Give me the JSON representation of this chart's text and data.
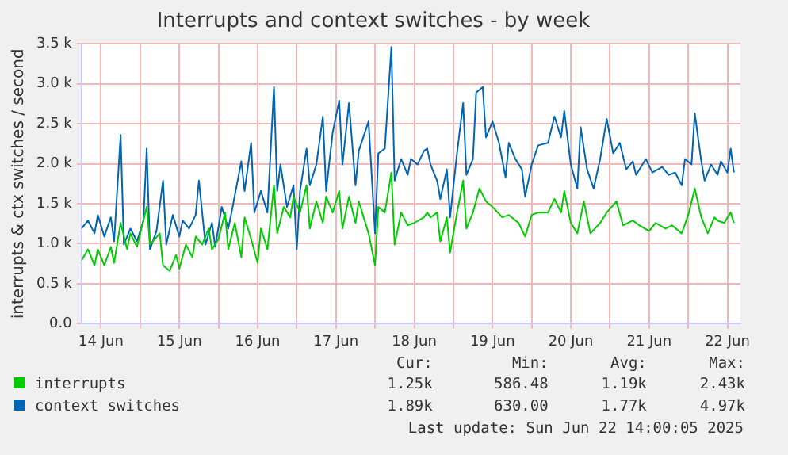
{
  "chart_data": {
    "type": "line",
    "title": "Interrupts and context switches - by week",
    "ylabel": "interrupts & ctx switches / second",
    "xlim": [
      "2025-06-14T06:00",
      "2025-06-22T16:00"
    ],
    "xticks": [
      {
        "value": "2025-06-14T12:00",
        "label": "14 Jun"
      },
      {
        "value": "2025-06-15T00:00",
        "label": null
      },
      {
        "value": "2025-06-15T12:00",
        "label": "15 Jun"
      },
      {
        "value": "2025-06-16T00:00",
        "label": null
      },
      {
        "value": "2025-06-16T12:00",
        "label": "16 Jun"
      },
      {
        "value": "2025-06-17T00:00",
        "label": null
      },
      {
        "value": "2025-06-17T12:00",
        "label": "17 Jun"
      },
      {
        "value": "2025-06-18T00:00",
        "label": null
      },
      {
        "value": "2025-06-18T12:00",
        "label": "18 Jun"
      },
      {
        "value": "2025-06-19T00:00",
        "label": null
      },
      {
        "value": "2025-06-19T12:00",
        "label": "19 Jun"
      },
      {
        "value": "2025-06-20T00:00",
        "label": null
      },
      {
        "value": "2025-06-20T12:00",
        "label": "20 Jun"
      },
      {
        "value": "2025-06-21T00:00",
        "label": null
      },
      {
        "value": "2025-06-21T12:00",
        "label": "21 Jun"
      },
      {
        "value": "2025-06-22T00:00",
        "label": null
      },
      {
        "value": "2025-06-22T12:00",
        "label": "22 Jun"
      }
    ],
    "ylim": [
      0,
      3.5
    ],
    "yticks": [
      {
        "value": 0,
        "label": "0.0"
      },
      {
        "value": 0.5,
        "label": "0.5 k"
      },
      {
        "value": 1,
        "label": "1.0 k"
      },
      {
        "value": 1.5,
        "label": "1.5 k"
      },
      {
        "value": 2,
        "label": "2.0 k"
      },
      {
        "value": 2.5,
        "label": "2.5 k"
      },
      {
        "value": 3,
        "label": "3.0 k"
      },
      {
        "value": 3.5,
        "label": "3.5 k"
      }
    ],
    "grid": true,
    "legend": "bottom left",
    "marker": "none",
    "series": [
      {
        "name": "interrupts",
        "color": "#00cc00",
        "x": [
          "2025-06-14T06:00",
          "2025-06-14T08:00",
          "2025-06-14T10:00",
          "2025-06-14T11:00",
          "2025-06-14T13:00",
          "2025-06-14T15:00",
          "2025-06-14T16:00",
          "2025-06-14T18:00",
          "2025-06-14T20:00",
          "2025-06-14T21:00",
          "2025-06-14T23:00",
          "2025-06-15T02:00",
          "2025-06-15T03:00",
          "2025-06-15T06:00",
          "2025-06-15T07:00",
          "2025-06-15T09:00",
          "2025-06-15T11:00",
          "2025-06-15T12:00",
          "2025-06-15T14:00",
          "2025-06-15T16:00",
          "2025-06-15T17:00",
          "2025-06-15T19:00",
          "2025-06-15T21:00",
          "2025-06-15T22:00",
          "2025-06-16T00:00",
          "2025-06-16T02:00",
          "2025-06-16T03:00",
          "2025-06-16T05:00",
          "2025-06-16T07:00",
          "2025-06-16T08:00",
          "2025-06-16T10:00",
          "2025-06-16T12:00",
          "2025-06-16T13:00",
          "2025-06-16T15:00",
          "2025-06-16T17:00",
          "2025-06-16T18:00",
          "2025-06-16T20:00",
          "2025-06-16T22:00",
          "2025-06-16T23:00",
          "2025-06-17T01:00",
          "2025-06-17T03:00",
          "2025-06-17T04:00",
          "2025-06-17T06:00",
          "2025-06-17T08:00",
          "2025-06-17T09:00",
          "2025-06-17T11:00",
          "2025-06-17T13:00",
          "2025-06-17T14:00",
          "2025-06-17T16:00",
          "2025-06-17T18:00",
          "2025-06-17T19:00",
          "2025-06-17T22:00",
          "2025-06-18T00:00",
          "2025-06-18T01:00",
          "2025-06-18T03:00",
          "2025-06-18T05:00",
          "2025-06-18T06:00",
          "2025-06-18T08:00",
          "2025-06-18T10:00",
          "2025-06-18T12:00",
          "2025-06-18T15:00",
          "2025-06-18T16:00",
          "2025-06-18T17:00",
          "2025-06-18T19:00",
          "2025-06-18T20:00",
          "2025-06-18T22:00",
          "2025-06-18T23:00",
          "2025-06-19T01:00",
          "2025-06-19T03:00",
          "2025-06-19T04:00",
          "2025-06-19T06:00",
          "2025-06-19T08:00",
          "2025-06-19T10:00",
          "2025-06-19T12:00",
          "2025-06-19T15:00",
          "2025-06-19T17:00",
          "2025-06-19T20:00",
          "2025-06-19T22:00",
          "2025-06-20T00:00",
          "2025-06-20T02:00",
          "2025-06-20T05:00",
          "2025-06-20T07:00",
          "2025-06-20T09:00",
          "2025-06-20T10:00",
          "2025-06-20T12:00",
          "2025-06-20T14:00",
          "2025-06-20T16:00",
          "2025-06-20T18:00",
          "2025-06-20T21:00",
          "2025-06-20T23:00",
          "2025-06-21T02:00",
          "2025-06-21T04:00",
          "2025-06-21T07:00",
          "2025-06-21T09:00",
          "2025-06-21T12:00",
          "2025-06-21T14:00",
          "2025-06-21T17:00",
          "2025-06-21T19:00",
          "2025-06-21T22:00",
          "2025-06-22T00:00",
          "2025-06-22T02:00",
          "2025-06-22T04:00",
          "2025-06-22T06:00",
          "2025-06-22T08:00",
          "2025-06-22T09:00",
          "2025-06-22T11:00",
          "2025-06-22T13:00",
          "2025-06-22T14:00"
        ],
        "values": [
          0.79,
          0.93,
          0.73,
          0.93,
          0.73,
          0.96,
          0.76,
          1.26,
          0.93,
          1.13,
          0.96,
          1.46,
          0.99,
          1.13,
          0.73,
          0.66,
          0.86,
          0.69,
          0.99,
          0.83,
          1.09,
          0.99,
          1.19,
          0.93,
          1.06,
          1.39,
          0.93,
          1.26,
          0.83,
          1.33,
          1.06,
          0.76,
          1.19,
          0.93,
          1.73,
          1.13,
          1.46,
          1.33,
          1.59,
          1.39,
          1.73,
          1.19,
          1.53,
          1.26,
          1.59,
          1.39,
          1.66,
          1.19,
          1.59,
          1.26,
          1.53,
          1.13,
          0.73,
          1.46,
          1.39,
          1.89,
          0.99,
          1.39,
          1.23,
          1.26,
          1.33,
          1.39,
          1.33,
          1.39,
          1.03,
          1.33,
          0.89,
          1.36,
          1.79,
          1.19,
          1.39,
          1.69,
          1.53,
          1.46,
          1.33,
          1.36,
          1.26,
          1.09,
          1.36,
          1.39,
          1.39,
          1.56,
          1.39,
          1.66,
          1.26,
          1.13,
          1.53,
          1.13,
          1.26,
          1.39,
          1.53,
          1.23,
          1.29,
          1.23,
          1.16,
          1.26,
          1.19,
          1.23,
          1.13,
          1.36,
          1.69,
          1.33,
          1.13,
          1.33,
          1.29,
          1.26,
          1.39,
          1.26
        ]
      },
      {
        "name": "context switches",
        "color": "#0066b3",
        "x": [
          "2025-06-14T06:00",
          "2025-06-14T08:00",
          "2025-06-14T10:00",
          "2025-06-14T11:00",
          "2025-06-14T13:00",
          "2025-06-14T15:00",
          "2025-06-14T16:00",
          "2025-06-14T18:00",
          "2025-06-14T19:00",
          "2025-06-14T21:00",
          "2025-06-14T23:00",
          "2025-06-15T01:00",
          "2025-06-15T02:00",
          "2025-06-15T03:00",
          "2025-06-15T05:00",
          "2025-06-15T07:00",
          "2025-06-15T08:00",
          "2025-06-15T10:00",
          "2025-06-15T12:00",
          "2025-06-15T13:00",
          "2025-06-15T15:00",
          "2025-06-15T17:00",
          "2025-06-15T18:00",
          "2025-06-15T20:00",
          "2025-06-15T22:00",
          "2025-06-15T23:00",
          "2025-06-16T01:00",
          "2025-06-16T03:00",
          "2025-06-16T04:00",
          "2025-06-16T07:00",
          "2025-06-16T08:00",
          "2025-06-16T10:00",
          "2025-06-16T11:00",
          "2025-06-16T13:00",
          "2025-06-16T15:00",
          "2025-06-16T17:00",
          "2025-06-16T18:00",
          "2025-06-16T19:00",
          "2025-06-16T21:00",
          "2025-06-16T23:00",
          "2025-06-17T00:00",
          "2025-06-17T01:00",
          "2025-06-17T03:00",
          "2025-06-17T04:00",
          "2025-06-17T06:00",
          "2025-06-17T08:00",
          "2025-06-17T09:00",
          "2025-06-17T11:00",
          "2025-06-17T13:00",
          "2025-06-17T14:00",
          "2025-06-17T16:00",
          "2025-06-17T18:00",
          "2025-06-17T19:00",
          "2025-06-17T22:00",
          "2025-06-18T00:00",
          "2025-06-18T01:00",
          "2025-06-18T03:00",
          "2025-06-18T05:00",
          "2025-06-18T06:00",
          "2025-06-18T08:00",
          "2025-06-18T10:00",
          "2025-06-18T11:00",
          "2025-06-18T13:00",
          "2025-06-18T15:00",
          "2025-06-18T16:00",
          "2025-06-18T17:00",
          "2025-06-18T19:00",
          "2025-06-18T20:00",
          "2025-06-18T22:00",
          "2025-06-18T23:00",
          "2025-06-19T01:00",
          "2025-06-19T03:00",
          "2025-06-19T04:00",
          "2025-06-19T06:00",
          "2025-06-19T07:00",
          "2025-06-19T09:00",
          "2025-06-19T10:00",
          "2025-06-19T12:00",
          "2025-06-19T14:00",
          "2025-06-19T16:00",
          "2025-06-19T17:00",
          "2025-06-19T19:00",
          "2025-06-19T21:00",
          "2025-06-19T22:00",
          "2025-06-20T00:00",
          "2025-06-20T02:00",
          "2025-06-20T05:00",
          "2025-06-20T07:00",
          "2025-06-20T09:00",
          "2025-06-20T10:00",
          "2025-06-20T12:00",
          "2025-06-20T14:00",
          "2025-06-20T15:00",
          "2025-06-20T17:00",
          "2025-06-20T19:00",
          "2025-06-20T21:00",
          "2025-06-20T23:00",
          "2025-06-21T01:00",
          "2025-06-21T03:00",
          "2025-06-21T05:00",
          "2025-06-21T07:00",
          "2025-06-21T08:00",
          "2025-06-21T11:00",
          "2025-06-21T13:00",
          "2025-06-21T16:00",
          "2025-06-21T18:00",
          "2025-06-21T20:00",
          "2025-06-21T22:00",
          "2025-06-21T23:00",
          "2025-06-22T01:00",
          "2025-06-22T02:00",
          "2025-06-22T04:00",
          "2025-06-22T05:00",
          "2025-06-22T07:00",
          "2025-06-22T09:00",
          "2025-06-22T10:00",
          "2025-06-22T12:00",
          "2025-06-22T13:00",
          "2025-06-22T14:00"
        ],
        "values": [
          1.19,
          1.29,
          1.13,
          1.36,
          1.09,
          1.33,
          1.03,
          2.36,
          0.99,
          1.19,
          1.03,
          1.29,
          2.19,
          0.93,
          1.16,
          1.79,
          0.99,
          1.36,
          1.09,
          1.29,
          1.19,
          1.36,
          1.79,
          0.99,
          1.26,
          0.96,
          1.46,
          1.19,
          1.39,
          2.03,
          1.66,
          2.26,
          1.39,
          1.66,
          1.39,
          2.96,
          1.66,
          1.99,
          1.46,
          1.73,
          0.93,
          1.66,
          2.19,
          1.73,
          1.99,
          2.59,
          1.66,
          2.39,
          2.79,
          1.99,
          2.76,
          1.73,
          2.16,
          2.53,
          1.13,
          2.13,
          2.19,
          3.46,
          1.79,
          2.06,
          1.86,
          2.06,
          1.99,
          2.16,
          2.19,
          1.99,
          1.79,
          1.56,
          1.93,
          1.33,
          2.09,
          2.76,
          1.86,
          2.06,
          2.89,
          2.96,
          2.33,
          2.53,
          2.26,
          1.83,
          2.26,
          2.06,
          1.93,
          1.59,
          1.99,
          2.23,
          2.26,
          2.59,
          2.33,
          2.66,
          1.99,
          1.69,
          2.46,
          1.93,
          1.69,
          2.06,
          2.56,
          2.13,
          2.26,
          1.93,
          2.03,
          1.86,
          2.06,
          1.89,
          1.96,
          1.86,
          1.89,
          1.73,
          2.06,
          1.99,
          2.63,
          2.03,
          1.79,
          1.99,
          1.86,
          2.03,
          1.89,
          2.19,
          1.89
        ]
      }
    ],
    "annotations": [
      "Cur:",
      "Min:",
      "Avg:",
      "Max:",
      "1.25k",
      "586.48",
      "1.19k",
      "2.43k",
      "1.89k",
      "630.00",
      "1.77k",
      "4.97k",
      "Last update: Sun Jun 22 14:00:05 2025"
    ]
  }
}
